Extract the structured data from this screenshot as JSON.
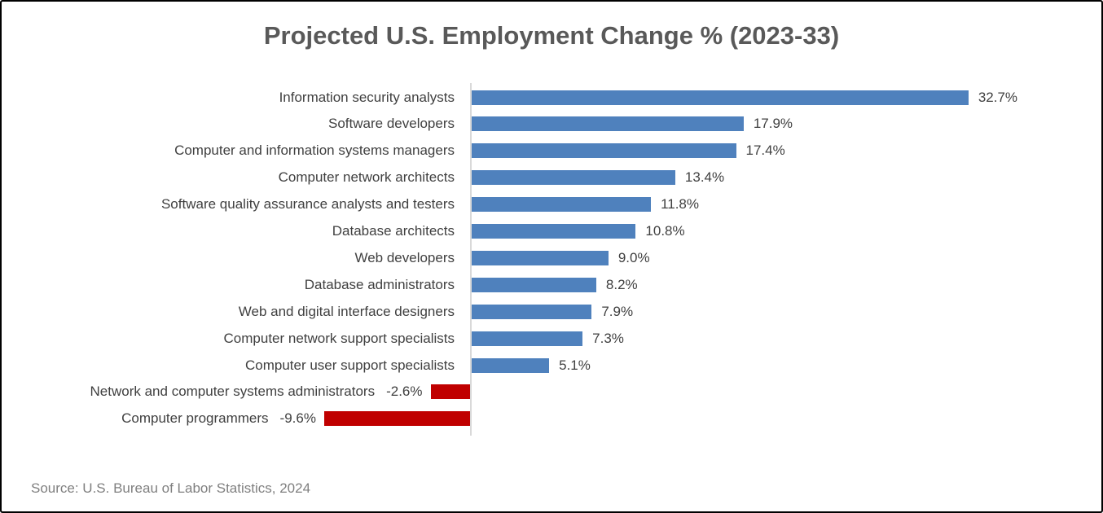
{
  "chart_data": {
    "type": "bar",
    "orientation": "horizontal",
    "title": "Projected U.S. Employment Change % (2023-33)",
    "source": "Source: U.S. Bureau of Labor Statistics, 2024",
    "categories": [
      "Information security analysts",
      "Software developers",
      "Computer and information systems managers",
      "Computer network architects",
      "Software quality assurance analysts and testers",
      "Database architects",
      "Web developers",
      "Database administrators",
      "Web and digital interface designers",
      "Computer network support specialists",
      "Computer user support specialists",
      "Network and computer systems administrators",
      "Computer programmers"
    ],
    "values": [
      32.7,
      17.9,
      17.4,
      13.4,
      11.8,
      10.8,
      9.0,
      8.2,
      7.9,
      7.3,
      5.1,
      -2.6,
      -9.6
    ],
    "value_labels": [
      "32.7%",
      "17.9%",
      "17.4%",
      "13.4%",
      "11.8%",
      "10.8%",
      "9.0%",
      "8.2%",
      "7.9%",
      "7.3%",
      "5.1%",
      "-2.6%",
      "-9.6%"
    ],
    "data_labels_visible": true,
    "grid": false,
    "legend": "none",
    "xlim": [
      -10,
      35
    ],
    "colors": {
      "positive_bar": "#4F81BD",
      "negative_bar": "#C00000",
      "axis_line": "#D9D9D9",
      "title_text": "#595959",
      "label_text": "#404040",
      "source_text": "#7F7F7F"
    }
  }
}
